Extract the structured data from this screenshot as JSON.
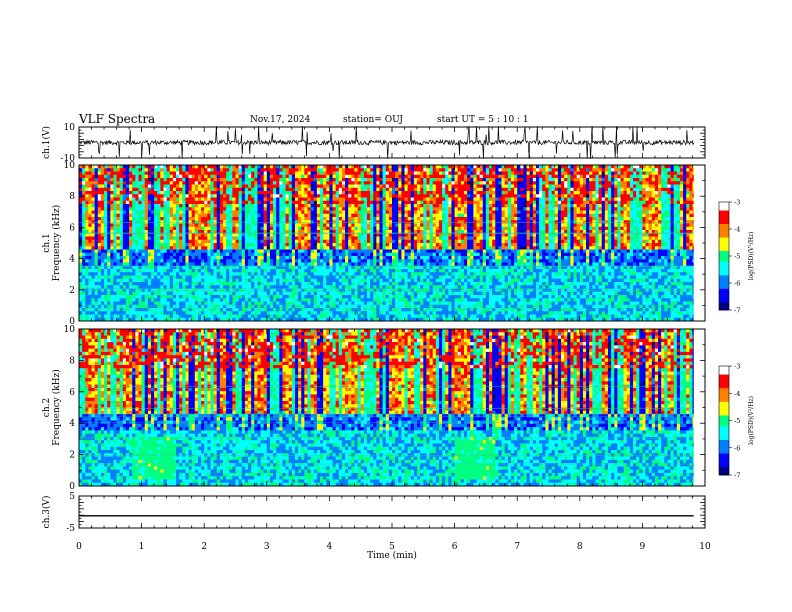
{
  "header": {
    "title": "VLF Spectra",
    "date": "Nov.17, 2024",
    "station": "station= OUJ",
    "start": "start  UT  =   5  : 10 : 1"
  },
  "colors": {
    "trace": "#000000",
    "background": "#ffffff",
    "colormap": [
      "#000080",
      "#0000ff",
      "#0080ff",
      "#00ffff",
      "#00ff80",
      "#ffff00",
      "#ff8000",
      "#ff0000",
      "#ffffff"
    ]
  },
  "chart_data": [
    {
      "type": "line",
      "name": "ch1-waveform",
      "ylabel": "ch.1(V)",
      "ylim": [
        -10,
        10
      ],
      "y_ticks": [
        "10",
        "-10"
      ],
      "xlim": [
        0,
        10
      ],
      "baseline_value": 0
    },
    {
      "type": "heatmap",
      "name": "ch1-spectrogram",
      "ylabel_line1": "ch.1",
      "ylabel_line2": "Frequency (kHz)",
      "ylim": [
        0,
        10
      ],
      "y_ticks": [
        "0",
        "2",
        "4",
        "6",
        "8",
        "10"
      ],
      "xlim": [
        0,
        10
      ],
      "colorbar": {
        "label": "log(PSD)(V²/Hz)",
        "range": [
          -7,
          -3
        ],
        "ticks": [
          "-3",
          "-4",
          "-5",
          "-6",
          "-7"
        ]
      }
    },
    {
      "type": "heatmap",
      "name": "ch2-spectrogram",
      "ylabel_line1": "ch.2",
      "ylabel_line2": "Frequency (kHz)",
      "ylim": [
        0,
        10
      ],
      "y_ticks": [
        "0",
        "2",
        "4",
        "6",
        "8",
        "10"
      ],
      "xlim": [
        0,
        10
      ],
      "colorbar": {
        "label": "log(PSD)(V²/Hz)",
        "range": [
          -7,
          -3
        ],
        "ticks": [
          "-3",
          "-4",
          "-5",
          "-6",
          "-7"
        ]
      }
    },
    {
      "type": "line",
      "name": "ch3-waveform",
      "ylabel": "ch.3(V)",
      "ylim": [
        -5,
        5
      ],
      "y_ticks": [
        "5",
        "-5"
      ],
      "xlim": [
        0,
        10
      ],
      "x": [
        0,
        9.82
      ],
      "y": [
        -1.2,
        -1.2
      ],
      "xlabel": "Time (min)",
      "x_ticks": [
        "0",
        "1",
        "2",
        "3",
        "4",
        "5",
        "6",
        "7",
        "8",
        "9",
        "10"
      ]
    }
  ]
}
